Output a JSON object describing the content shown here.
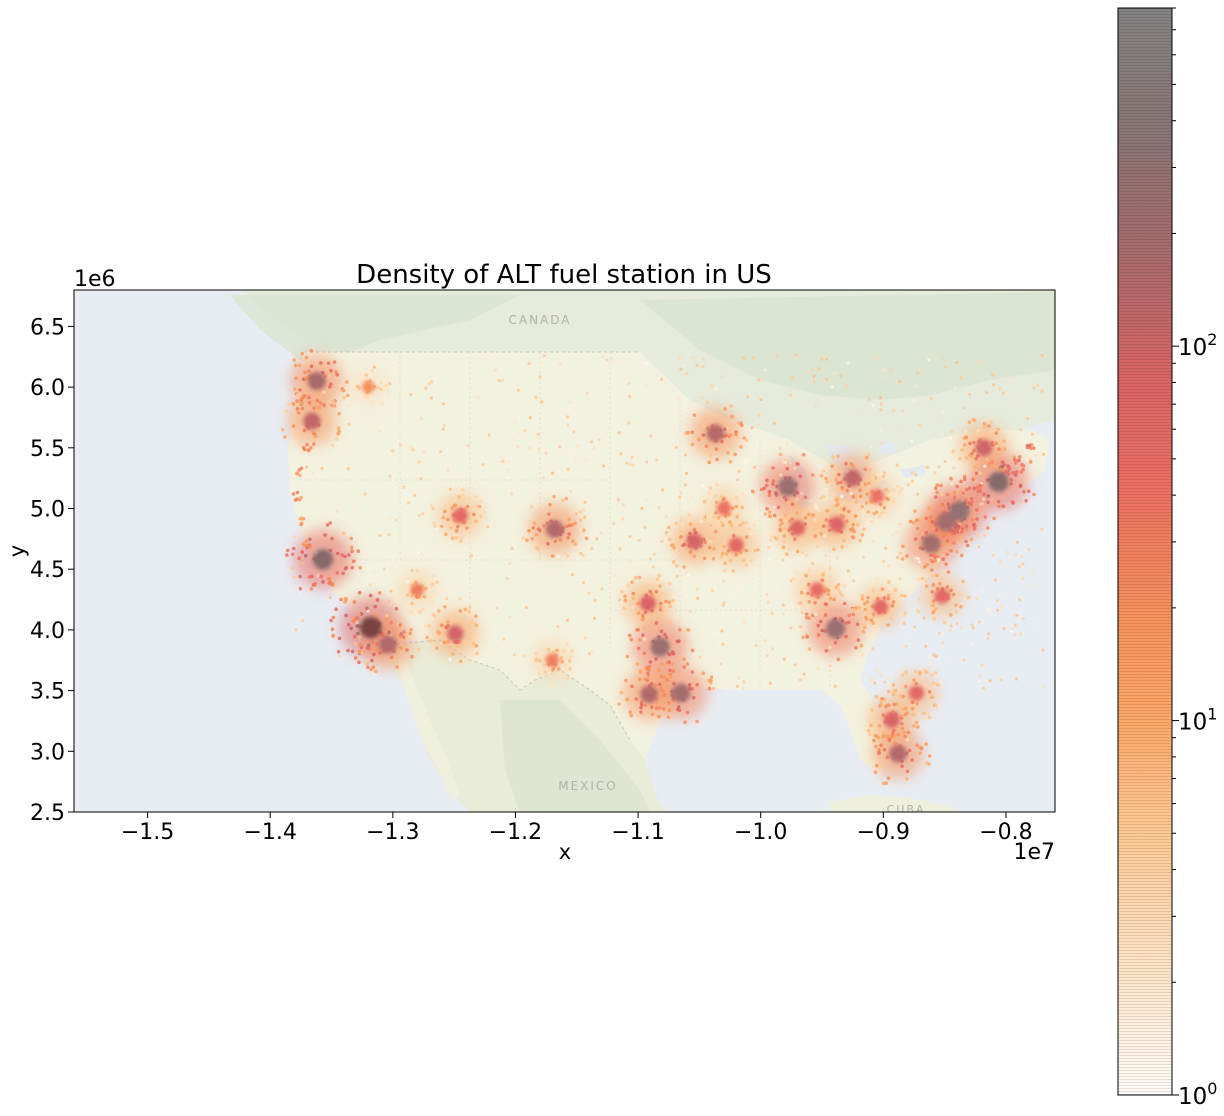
{
  "chart_data": {
    "type": "heatmap",
    "title": "Density of ALT fuel station in US",
    "xlabel": "x",
    "ylabel": "y",
    "x_offset_label": "1e7",
    "y_offset_label": "1e6",
    "xlim": [
      -1.56,
      -0.76
    ],
    "ylim": [
      2.5,
      6.8
    ],
    "x_ticks": [
      -1.5,
      -1.4,
      -1.3,
      -1.2,
      -1.1,
      -1.0,
      -0.9,
      -0.8
    ],
    "x_tick_labels": [
      "−1.5",
      "−1.4",
      "−1.3",
      "−1.2",
      "−1.1",
      "−1.0",
      "−0.9",
      "−0.8"
    ],
    "y_ticks": [
      2.5,
      3.0,
      3.5,
      4.0,
      4.5,
      5.0,
      5.5,
      6.0,
      6.5
    ],
    "y_tick_labels": [
      "2.5",
      "3.0",
      "3.5",
      "4.0",
      "4.5",
      "5.0",
      "5.5",
      "6.0",
      "6.5"
    ],
    "colorbar": {
      "scale": "log",
      "range": [
        1,
        800
      ],
      "ticks": [
        1,
        10,
        100
      ],
      "tick_labels": [
        "10",
        "10",
        "10"
      ],
      "tick_exponents": [
        "0",
        "1",
        "2"
      ],
      "colormap": "Oranges-to-Reds-to-Greys (alpha blended)"
    },
    "basemap_labels": [
      {
        "text": "CANADA",
        "x": -1.16,
        "y": 6.53
      },
      {
        "text": "MEXICO",
        "x": -1.14,
        "y": 2.72
      },
      {
        "text": "CUBA",
        "x": -0.886,
        "y": 2.52
      }
    ],
    "hotspots": [
      {
        "x": -1.362,
        "y": 6.05,
        "density": 180
      },
      {
        "x": -1.366,
        "y": 5.72,
        "density": 120
      },
      {
        "x": -1.357,
        "y": 4.58,
        "density": 400
      },
      {
        "x": -1.318,
        "y": 4.02,
        "density": 600
      },
      {
        "x": -1.304,
        "y": 3.88,
        "density": 150
      },
      {
        "x": -1.249,
        "y": 3.97,
        "density": 90
      },
      {
        "x": -1.245,
        "y": 4.94,
        "density": 60
      },
      {
        "x": -1.168,
        "y": 4.83,
        "density": 150
      },
      {
        "x": -1.082,
        "y": 3.86,
        "density": 250
      },
      {
        "x": -1.065,
        "y": 3.48,
        "density": 200
      },
      {
        "x": -1.091,
        "y": 3.47,
        "density": 150
      },
      {
        "x": -1.037,
        "y": 5.62,
        "density": 140
      },
      {
        "x": -1.054,
        "y": 4.73,
        "density": 90
      },
      {
        "x": -0.978,
        "y": 5.18,
        "density": 250
      },
      {
        "x": -0.939,
        "y": 4.01,
        "density": 250
      },
      {
        "x": -0.925,
        "y": 5.25,
        "density": 120
      },
      {
        "x": -0.861,
        "y": 4.71,
        "density": 200
      },
      {
        "x": -0.849,
        "y": 4.89,
        "density": 200
      },
      {
        "x": -0.838,
        "y": 4.98,
        "density": 300
      },
      {
        "x": -0.806,
        "y": 5.22,
        "density": 400
      },
      {
        "x": -0.818,
        "y": 5.5,
        "density": 100
      },
      {
        "x": -0.893,
        "y": 3.26,
        "density": 80
      },
      {
        "x": -0.888,
        "y": 2.98,
        "density": 150
      },
      {
        "x": -0.873,
        "y": 3.48,
        "density": 60
      },
      {
        "x": -1.092,
        "y": 4.22,
        "density": 80
      },
      {
        "x": -1.02,
        "y": 4.7,
        "density": 60
      },
      {
        "x": -0.938,
        "y": 4.87,
        "density": 80
      },
      {
        "x": -0.902,
        "y": 4.19,
        "density": 60
      },
      {
        "x": -0.852,
        "y": 4.28,
        "density": 60
      },
      {
        "x": -0.954,
        "y": 4.33,
        "density": 50
      },
      {
        "x": -1.17,
        "y": 3.75,
        "density": 30
      },
      {
        "x": -1.28,
        "y": 4.33,
        "density": 30
      },
      {
        "x": -1.32,
        "y": 6.0,
        "density": 20
      },
      {
        "x": -1.03,
        "y": 5.0,
        "density": 40
      },
      {
        "x": -0.97,
        "y": 4.84,
        "density": 70
      },
      {
        "x": -0.905,
        "y": 5.1,
        "density": 40
      }
    ]
  }
}
